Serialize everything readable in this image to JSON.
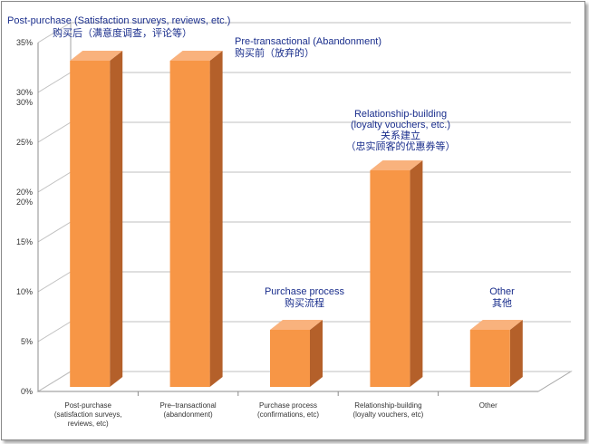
{
  "chart_data": {
    "type": "bar",
    "style": "3d-column",
    "categories": [
      [
        "Post-purchase",
        "(satisfaction surveys,",
        "reviews, etc)"
      ],
      [
        "Pre–transactional",
        "(abandonment)"
      ],
      [
        "Purchase process",
        "(confirmations, etc)"
      ],
      [
        "Relationship-building",
        "(loyalty vouchers, etc)"
      ],
      [
        "Other"
      ]
    ],
    "values": [
      33,
      33,
      6,
      22,
      6
    ],
    "ylim": [
      0,
      35
    ],
    "yticks": [
      "0%",
      "5%",
      "10%",
      "15%",
      "20%",
      "25%",
      "30%",
      "35%"
    ],
    "ytick_values": [
      0,
      5,
      10,
      15,
      20,
      25,
      30,
      35
    ],
    "extra_ytick_labels": [
      {
        "value": 30,
        "text": "30%"
      },
      {
        "value": 20,
        "text": "20%"
      }
    ],
    "grid": true,
    "annotations": [
      {
        "category": 0,
        "lines": [
          "Post-purchase  (Satisfaction surveys, reviews, etc.)",
          "购买后（满意度调查，评论等）"
        ]
      },
      {
        "category": 1,
        "lines": [
          "Pre-transactional  (Abandonment)",
          "购买前（放弃的）"
        ]
      },
      {
        "category": 2,
        "lines": [
          "Purchase process",
          "购买流程"
        ]
      },
      {
        "category": 3,
        "lines": [
          "Relationship-building",
          "(loyalty vouchers, etc.)",
          "关系建立",
          "（忠实顾客的优惠券等）"
        ]
      },
      {
        "category": 4,
        "lines": [
          "Other",
          "其他"
        ]
      }
    ],
    "colors": {
      "bar_front": "#f79646",
      "bar_side": "#b4602a",
      "bar_top": "#f9b27d",
      "grid": "#bfbfbf",
      "annotation": "#1a2e8c"
    }
  }
}
